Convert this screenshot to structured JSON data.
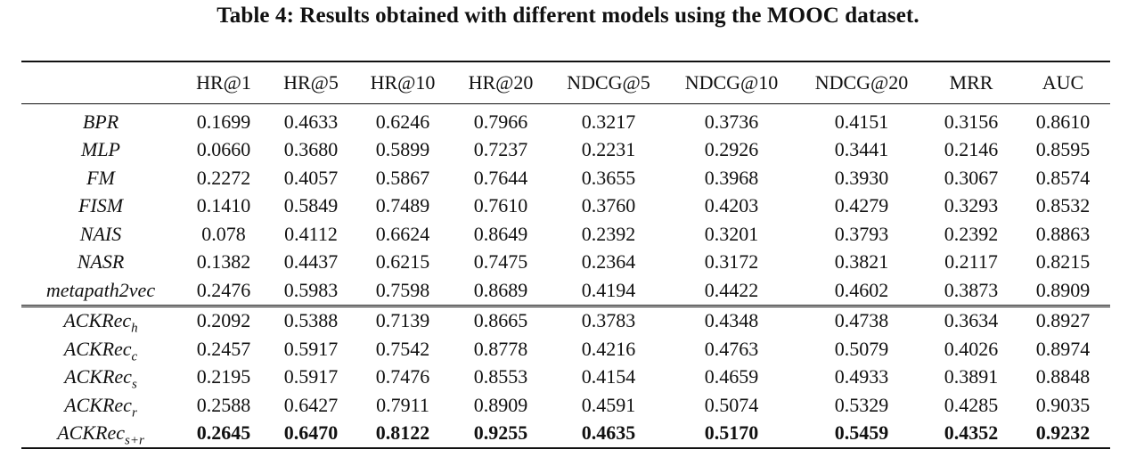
{
  "caption": "Table 4: Results obtained with different models using the MOOC dataset.",
  "table": {
    "columns": [
      "",
      "HR@1",
      "HR@5",
      "HR@10",
      "HR@20",
      "NDCG@5",
      "NDCG@10",
      "NDCG@20",
      "MRR",
      "AUC"
    ],
    "groups": [
      {
        "rows": [
          {
            "model": "BPR",
            "sub": "",
            "values": [
              "0.1699",
              "0.4633",
              "0.6246",
              "0.7966",
              "0.3217",
              "0.3736",
              "0.4151",
              "0.3156",
              "0.8610"
            ]
          },
          {
            "model": "MLP",
            "sub": "",
            "values": [
              "0.0660",
              "0.3680",
              "0.5899",
              "0.7237",
              "0.2231",
              "0.2926",
              "0.3441",
              "0.2146",
              "0.8595"
            ]
          },
          {
            "model": "FM",
            "sub": "",
            "values": [
              "0.2272",
              "0.4057",
              "0.5867",
              "0.7644",
              "0.3655",
              "0.3968",
              "0.3930",
              "0.3067",
              "0.8574"
            ]
          },
          {
            "model": "FISM",
            "sub": "",
            "values": [
              "0.1410",
              "0.5849",
              "0.7489",
              "0.7610",
              "0.3760",
              "0.4203",
              "0.4279",
              "0.3293",
              "0.8532"
            ]
          },
          {
            "model": "NAIS",
            "sub": "",
            "values": [
              "0.078",
              "0.4112",
              "0.6624",
              "0.8649",
              "0.2392",
              "0.3201",
              "0.3793",
              "0.2392",
              "0.8863"
            ]
          },
          {
            "model": "NASR",
            "sub": "",
            "values": [
              "0.1382",
              "0.4437",
              "0.6215",
              "0.7475",
              "0.2364",
              "0.3172",
              "0.3821",
              "0.2117",
              "0.8215"
            ]
          },
          {
            "model": "metapath2vec",
            "sub": "",
            "values": [
              "0.2476",
              "0.5983",
              "0.7598",
              "0.8689",
              "0.4194",
              "0.4422",
              "0.4602",
              "0.3873",
              "0.8909"
            ]
          }
        ]
      },
      {
        "rows": [
          {
            "model": "ACKRec",
            "sub": "h",
            "values": [
              "0.2092",
              "0.5388",
              "0.7139",
              "0.8665",
              "0.3783",
              "0.4348",
              "0.4738",
              "0.3634",
              "0.8927"
            ]
          },
          {
            "model": "ACKRec",
            "sub": "c",
            "values": [
              "0.2457",
              "0.5917",
              "0.7542",
              "0.8778",
              "0.4216",
              "0.4763",
              "0.5079",
              "0.4026",
              "0.8974"
            ]
          },
          {
            "model": "ACKRec",
            "sub": "s",
            "values": [
              "0.2195",
              "0.5917",
              "0.7476",
              "0.8553",
              "0.4154",
              "0.4659",
              "0.4933",
              "0.3891",
              "0.8848"
            ]
          },
          {
            "model": "ACKRec",
            "sub": "r",
            "values": [
              "0.2588",
              "0.6427",
              "0.7911",
              "0.8909",
              "0.4591",
              "0.5074",
              "0.5329",
              "0.4285",
              "0.9035"
            ]
          },
          {
            "model": "ACKRec",
            "sub": "s+r",
            "best": true,
            "values": [
              "0.2645",
              "0.6470",
              "0.8122",
              "0.9255",
              "0.4635",
              "0.5170",
              "0.5459",
              "0.4352",
              "0.9232"
            ]
          }
        ]
      }
    ]
  }
}
